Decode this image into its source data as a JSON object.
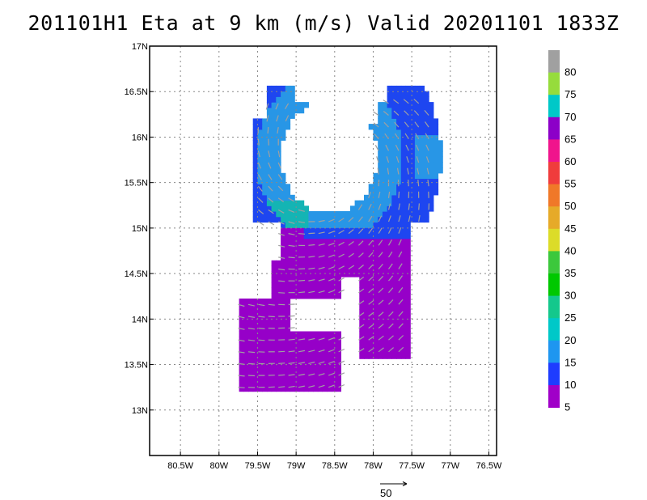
{
  "chart_data": {
    "type": "heatmap",
    "title": "201101H1 Eta at 9 km (m/s) Valid 20201101  1833Z",
    "x_ticks": [
      "80.5W",
      "80W",
      "79.5W",
      "79W",
      "78.5W",
      "78W",
      "77.5W",
      "77W",
      "76.5W"
    ],
    "y_ticks": [
      "17N",
      "16.5N",
      "16N",
      "15.5N",
      "15N",
      "14.5N",
      "14N",
      "13.5N",
      "13N"
    ],
    "x_range": [
      -80.9,
      -76.4
    ],
    "y_range": [
      12.5,
      17.0
    ],
    "grid": true,
    "colorbar_labels": [
      "80",
      "75",
      "70",
      "65",
      "60",
      "55",
      "50",
      "45",
      "40",
      "35",
      "30",
      "25",
      "20",
      "15",
      "10",
      "5"
    ],
    "colorbar_colors": [
      "#a0a0a0",
      "#96dc3c",
      "#00c8c8",
      "#8c00c8",
      "#f0148c",
      "#f03c3c",
      "#f07828",
      "#e6aa28",
      "#dcdc28",
      "#3cc83c",
      "#00c800",
      "#14c88c",
      "#00c8c8",
      "#1e96f0",
      "#1e3cff",
      "#a000c8"
    ],
    "reference_vector_label": "50",
    "field_colors": {
      "low": "#9600c8",
      "mid": "#1e46f0",
      "high": "#2896e6",
      "peak": "#14b4b4",
      "vector": "#a0a0a0"
    }
  }
}
